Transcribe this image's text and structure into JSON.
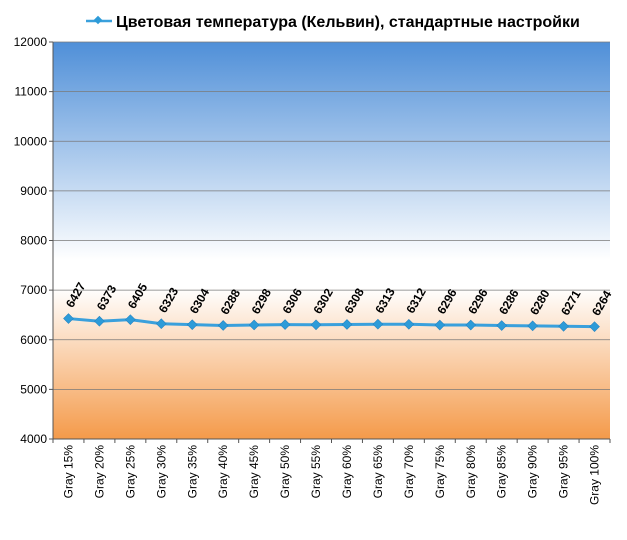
{
  "chart_data": {
    "type": "line",
    "title": "Цветовая температура (Кельвин), стандартные настройки",
    "categories": [
      "Gray 15%",
      "Gray 20%",
      "Gray 25%",
      "Gray 30%",
      "Gray 35%",
      "Gray 40%",
      "Gray 45%",
      "Gray 50%",
      "Gray 55%",
      "Gray 60%",
      "Gray 65%",
      "Gray 70%",
      "Gray 75%",
      "Gray 80%",
      "Gray 85%",
      "Gray 90%",
      "Gray 95%",
      "Gray 100%"
    ],
    "series": [
      {
        "name": "Цветовая температура (Кельвин), стандартные настройки",
        "values": [
          6427,
          6373,
          6405,
          6323,
          6304,
          6288,
          6298,
          6306,
          6302,
          6308,
          6313,
          6312,
          6296,
          6296,
          6286,
          6280,
          6271,
          6264
        ]
      }
    ],
    "ylim": [
      4000,
      12000
    ],
    "yticks": [
      "4000",
      "5000",
      "6000",
      "7000",
      "8000",
      "9000",
      "10000",
      "11000",
      "12000"
    ],
    "grid": true,
    "legend": "top",
    "colors": {
      "line": "#3aa0dc",
      "marker": "#2d9bd8",
      "background_top": "#4f8fd8",
      "background_mid": "#ffffff",
      "background_bottom": "#f49a4a"
    }
  }
}
